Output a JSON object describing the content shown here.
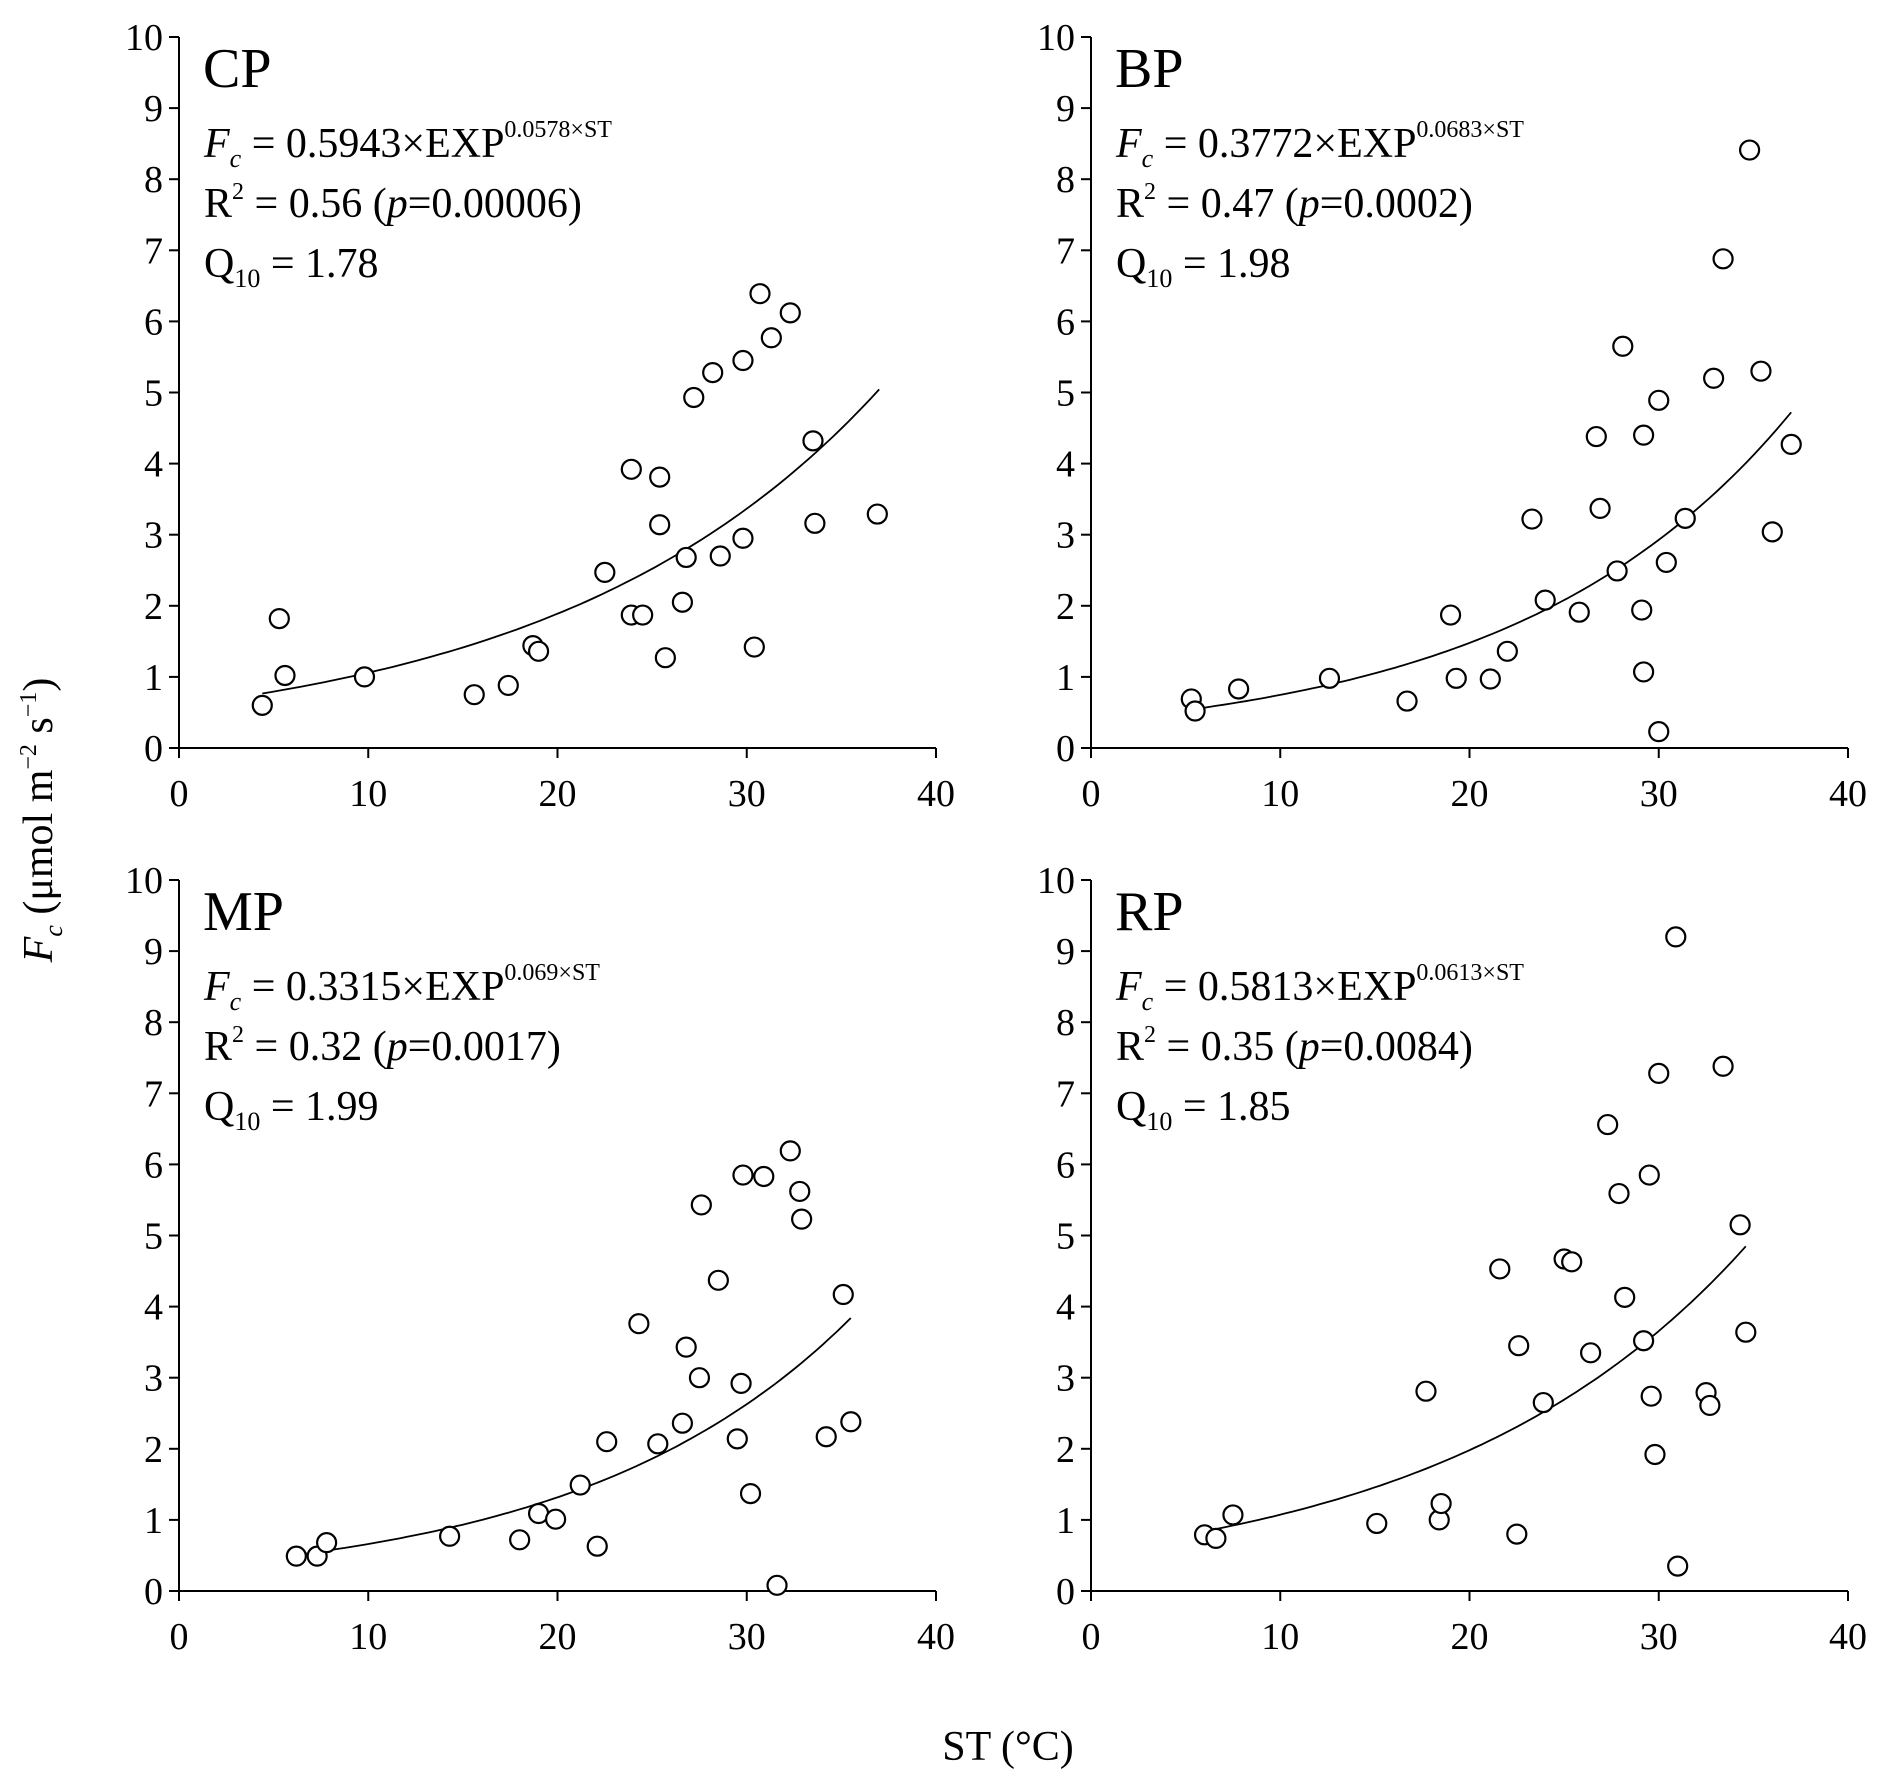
{
  "figure": {
    "x_axis_title": "ST (°C)",
    "y_axis_title": {
      "symbol": "F",
      "symbol_sub": "c",
      "unit_open": " (μmol m",
      "unit_exp1": "−2",
      "unit_mid": " s",
      "unit_exp2": "−1",
      "unit_close": ")"
    }
  },
  "chart_data": [
    {
      "type": "scatter",
      "panel": "CP",
      "xlim": [
        0,
        40
      ],
      "ylim": [
        0,
        10
      ],
      "x_ticks": [
        "0",
        "10",
        "20",
        "30",
        "40"
      ],
      "y_ticks": [
        "0",
        "1",
        "2",
        "3",
        "4",
        "5",
        "6",
        "7",
        "8",
        "9",
        "10"
      ],
      "equation": {
        "lhs": "F",
        "lhs_sub": "c",
        "body": " = 0.5943×EXP",
        "exponent": "0.0578×ST"
      },
      "r2": {
        "label": "R",
        "sup": "2",
        "pre": " = 0.56 (",
        "p": "p",
        "post": "=0.00006)"
      },
      "q10": {
        "label": "Q",
        "sub": "10",
        "value": " = 1.78"
      },
      "fit": {
        "a": 0.5943,
        "b": 0.0578,
        "x_range": [
          4.4,
          37
        ]
      },
      "points": [
        [
          4.4,
          0.6
        ],
        [
          5.3,
          1.82
        ],
        [
          5.6,
          1.02
        ],
        [
          9.8,
          1.0
        ],
        [
          15.6,
          0.75
        ],
        [
          17.4,
          0.88
        ],
        [
          18.7,
          1.44
        ],
        [
          19.0,
          1.36
        ],
        [
          22.5,
          2.47
        ],
        [
          23.9,
          3.92
        ],
        [
          23.9,
          1.87
        ],
        [
          24.5,
          1.87
        ],
        [
          25.4,
          3.81
        ],
        [
          25.4,
          3.14
        ],
        [
          25.7,
          1.27
        ],
        [
          26.6,
          2.05
        ],
        [
          26.8,
          2.68
        ],
        [
          27.2,
          4.93
        ],
        [
          28.2,
          5.28
        ],
        [
          28.6,
          2.7
        ],
        [
          29.8,
          5.45
        ],
        [
          29.8,
          2.95
        ],
        [
          30.4,
          1.42
        ],
        [
          30.7,
          6.39
        ],
        [
          31.3,
          5.77
        ],
        [
          32.3,
          6.12
        ],
        [
          33.5,
          4.32
        ],
        [
          33.6,
          3.16
        ],
        [
          36.9,
          3.29
        ]
      ]
    },
    {
      "type": "scatter",
      "panel": "BP",
      "xlim": [
        0,
        40
      ],
      "ylim": [
        0,
        10
      ],
      "x_ticks": [
        "0",
        "10",
        "20",
        "30",
        "40"
      ],
      "y_ticks": [
        "0",
        "1",
        "2",
        "3",
        "4",
        "5",
        "6",
        "7",
        "8",
        "9",
        "10"
      ],
      "equation": {
        "lhs": "F",
        "lhs_sub": "c",
        "body": " = 0.3772×EXP",
        "exponent": "0.0683×ST"
      },
      "r2": {
        "label": "R",
        "sup": "2",
        "pre": " = 0.47 (",
        "p": "p",
        "post": "=0.0002)"
      },
      "q10": {
        "label": "Q",
        "sub": "10",
        "value": " = 1.98"
      },
      "fit": {
        "a": 0.3772,
        "b": 0.0683,
        "x_range": [
          5.4,
          37
        ]
      },
      "points": [
        [
          5.3,
          0.69
        ],
        [
          5.5,
          0.52
        ],
        [
          7.8,
          0.83
        ],
        [
          12.6,
          0.98
        ],
        [
          16.7,
          0.66
        ],
        [
          19.0,
          1.87
        ],
        [
          19.3,
          0.98
        ],
        [
          21.1,
          0.97
        ],
        [
          22.0,
          1.36
        ],
        [
          23.3,
          3.22
        ],
        [
          24.0,
          2.08
        ],
        [
          25.8,
          1.91
        ],
        [
          26.7,
          4.38
        ],
        [
          26.9,
          3.37
        ],
        [
          27.8,
          2.49
        ],
        [
          28.1,
          5.65
        ],
        [
          29.1,
          1.94
        ],
        [
          29.2,
          4.4
        ],
        [
          29.2,
          1.07
        ],
        [
          30.0,
          4.89
        ],
        [
          30.0,
          0.23
        ],
        [
          30.4,
          2.61
        ],
        [
          31.4,
          3.23
        ],
        [
          32.9,
          5.2
        ],
        [
          33.4,
          6.88
        ],
        [
          34.8,
          8.41
        ],
        [
          35.4,
          5.3
        ],
        [
          36.0,
          3.04
        ],
        [
          37.0,
          4.27
        ]
      ]
    },
    {
      "type": "scatter",
      "panel": "MP",
      "xlim": [
        0,
        40
      ],
      "ylim": [
        0,
        10
      ],
      "x_ticks": [
        "0",
        "10",
        "20",
        "30",
        "40"
      ],
      "y_ticks": [
        "0",
        "1",
        "2",
        "3",
        "4",
        "5",
        "6",
        "7",
        "8",
        "9",
        "10"
      ],
      "equation": {
        "lhs": "F",
        "lhs_sub": "c",
        "body": " = 0.3315×EXP",
        "exponent": "0.069×ST"
      },
      "r2": {
        "label": "R",
        "sup": "2",
        "pre": " = 0.32 (",
        "p": "p",
        "post": "=0.0017)"
      },
      "q10": {
        "label": "Q",
        "sub": "10",
        "value": " = 1.99"
      },
      "fit": {
        "a": 0.3315,
        "b": 0.069,
        "x_range": [
          6.2,
          35.5
        ]
      },
      "points": [
        [
          6.2,
          0.49
        ],
        [
          7.3,
          0.49
        ],
        [
          7.8,
          0.68
        ],
        [
          14.3,
          0.77
        ],
        [
          18.0,
          0.72
        ],
        [
          19.0,
          1.09
        ],
        [
          19.9,
          1.01
        ],
        [
          21.2,
          1.49
        ],
        [
          22.1,
          0.63
        ],
        [
          22.6,
          2.1
        ],
        [
          24.3,
          3.76
        ],
        [
          25.3,
          2.07
        ],
        [
          26.6,
          2.36
        ],
        [
          26.8,
          3.43
        ],
        [
          27.5,
          3.0
        ],
        [
          27.6,
          5.43
        ],
        [
          28.5,
          4.37
        ],
        [
          29.5,
          2.14
        ],
        [
          29.7,
          2.92
        ],
        [
          29.8,
          5.85
        ],
        [
          30.2,
          1.37
        ],
        [
          30.9,
          5.83
        ],
        [
          31.6,
          0.08
        ],
        [
          32.3,
          6.19
        ],
        [
          32.8,
          5.62
        ],
        [
          32.9,
          5.23
        ],
        [
          34.2,
          2.17
        ],
        [
          35.1,
          4.17
        ],
        [
          35.5,
          2.38
        ]
      ]
    },
    {
      "type": "scatter",
      "panel": "RP",
      "xlim": [
        0,
        40
      ],
      "ylim": [
        0,
        10
      ],
      "x_ticks": [
        "0",
        "10",
        "20",
        "30",
        "40"
      ],
      "y_ticks": [
        "0",
        "1",
        "2",
        "3",
        "4",
        "5",
        "6",
        "7",
        "8",
        "9",
        "10"
      ],
      "equation": {
        "lhs": "F",
        "lhs_sub": "c",
        "body": " = 0.5813×EXP",
        "exponent": "0.0613×ST"
      },
      "r2": {
        "label": "R",
        "sup": "2",
        "pre": " = 0.35 (",
        "p": "p",
        "post": "=0.0084)"
      },
      "q10": {
        "label": "Q",
        "sub": "10",
        "value": " = 1.85"
      },
      "fit": {
        "a": 0.5813,
        "b": 0.0613,
        "x_range": [
          6.0,
          34.6
        ]
      },
      "points": [
        [
          6.0,
          0.79
        ],
        [
          6.6,
          0.74
        ],
        [
          7.5,
          1.07
        ],
        [
          15.1,
          0.95
        ],
        [
          17.7,
          2.81
        ],
        [
          18.4,
          1.0
        ],
        [
          18.5,
          1.23
        ],
        [
          21.6,
          4.53
        ],
        [
          22.5,
          0.8
        ],
        [
          22.6,
          3.45
        ],
        [
          23.9,
          2.65
        ],
        [
          25.0,
          4.67
        ],
        [
          25.4,
          4.63
        ],
        [
          26.4,
          3.35
        ],
        [
          27.3,
          6.56
        ],
        [
          27.9,
          5.59
        ],
        [
          28.2,
          4.13
        ],
        [
          29.2,
          3.52
        ],
        [
          29.5,
          5.85
        ],
        [
          29.6,
          2.74
        ],
        [
          29.8,
          1.92
        ],
        [
          30.0,
          7.28
        ],
        [
          30.9,
          9.2
        ],
        [
          31.0,
          0.35
        ],
        [
          32.5,
          2.79
        ],
        [
          32.7,
          2.61
        ],
        [
          33.4,
          7.38
        ],
        [
          34.3,
          5.15
        ],
        [
          34.6,
          3.64
        ]
      ]
    }
  ]
}
